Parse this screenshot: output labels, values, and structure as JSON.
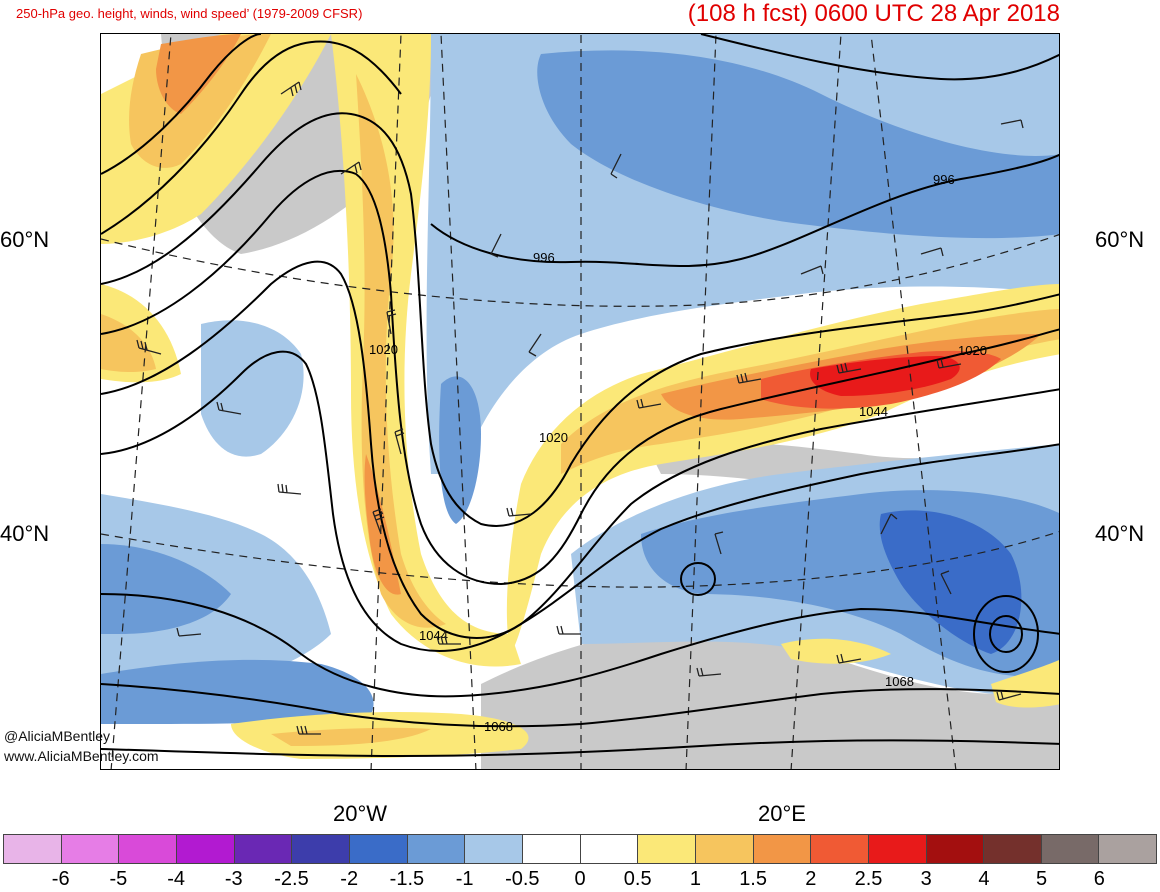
{
  "title": {
    "left": "250-hPa geo. height, winds, wind speed’ (1979-2009 CFSR)",
    "right": "(108 h fcst) 0600 UTC 28 Apr 2018"
  },
  "lat_labels": {
    "n60": "60°N",
    "n40": "40°N"
  },
  "lon_labels": {
    "w20": "20°W",
    "e20": "20°E"
  },
  "contour_labels": [
    "996",
    "996",
    "1020",
    "1020",
    "1020",
    "1044",
    "1044",
    "1068",
    "1068"
  ],
  "credits": {
    "handle": "@AliciaMBentley",
    "site": "www.AliciaMBentley.com"
  },
  "colorbar": {
    "colors": [
      "#e8b4e8",
      "#e67de6",
      "#d94ad9",
      "#b21ad1",
      "#6a28b4",
      "#3d3dab",
      "#3a6cc8",
      "#6b9bd6",
      "#a7c8e8",
      "#ffffff",
      "#ffffff",
      "#fbe878",
      "#f6c55e",
      "#f29646",
      "#f05a34",
      "#e81a1a",
      "#a30f0f",
      "#74302c",
      "#786a68",
      "#aaa19f"
    ],
    "labels": [
      "-6",
      "-5",
      "-4",
      "-3",
      "-2.5",
      "-2",
      "-1.5",
      "-1",
      "-0.5",
      "0",
      "0.5",
      "1",
      "1.5",
      "2",
      "2.5",
      "3",
      "4",
      "5",
      "6"
    ]
  }
}
